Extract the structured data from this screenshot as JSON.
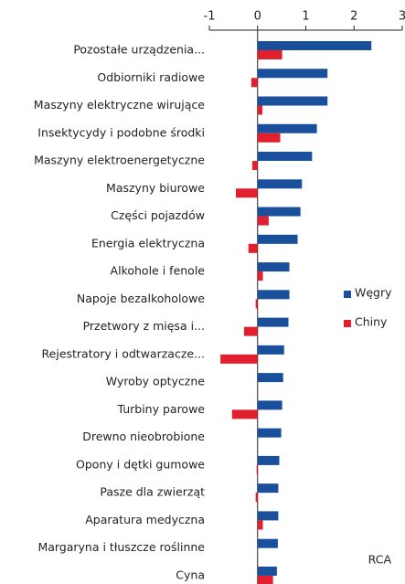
{
  "chart_data": {
    "type": "bar",
    "orientation": "horizontal",
    "categories": [
      "Pozostałe urządzenia...",
      "Odbiorniki radiowe",
      "Maszyny elektryczne wirujące",
      "Insektycydy i podobne środki",
      "Maszyny elektroenergetyczne",
      "Maszyny biurowe",
      "Części pojazdów",
      "Energia elektryczna",
      "Alkohole i fenole",
      "Napoje bezalkoholowe",
      "Przetwory z mięsa i...",
      "Rejestratory i odtwarzacze...",
      "Wyroby optyczne",
      "Turbiny parowe",
      "Drewno nieobrobione",
      "Opony i dętki gumowe",
      "Pasze dla zwierząt",
      "Aparatura medyczna",
      "Margaryna i tłuszcze roślinne",
      "Cyna"
    ],
    "series": [
      {
        "name": "Węgry",
        "color": "#1a4f9c",
        "values": [
          2.36,
          1.45,
          1.45,
          1.23,
          1.13,
          0.92,
          0.89,
          0.83,
          0.66,
          0.66,
          0.64,
          0.55,
          0.53,
          0.51,
          0.49,
          0.45,
          0.43,
          0.43,
          0.42,
          0.4
        ]
      },
      {
        "name": "Chiny",
        "color": "#e0202f",
        "values": [
          0.51,
          -0.13,
          0.1,
          0.47,
          -0.11,
          -0.45,
          0.23,
          -0.19,
          0.11,
          -0.04,
          -0.28,
          -0.77,
          0,
          -0.53,
          0,
          -0.02,
          -0.04,
          0.11,
          0,
          0.32
        ]
      }
    ],
    "xlim": [
      -1,
      3
    ],
    "xticks": [
      -1,
      0,
      1,
      2,
      3
    ],
    "annotation": "RCA",
    "legend": "right"
  }
}
